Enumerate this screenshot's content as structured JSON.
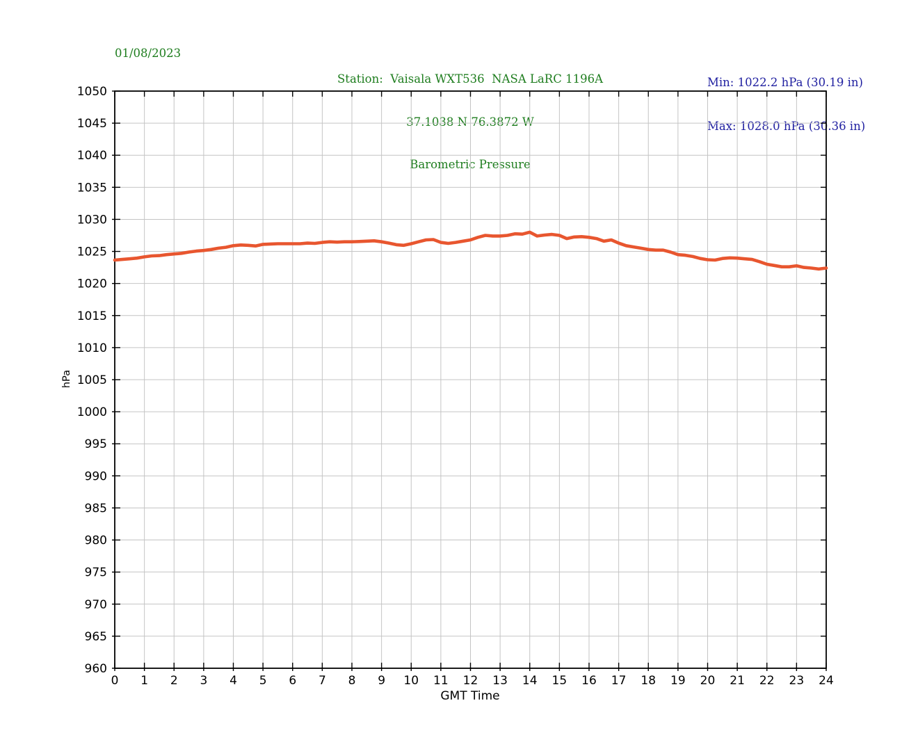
{
  "header": {
    "date": "01/08/2023",
    "title_line1": "Station:  Vaisala WXT536  NASA LaRC 1196A",
    "title_line2": "37.1038 N 76.3872 W",
    "title_line3": "Barometric Pressure",
    "min_label": "Min: 1022.2 hPa (30.19 in)",
    "max_label": "Max: 1028.0 hPa (30.36 in)"
  },
  "colors": {
    "title_green": "#1e7d1e",
    "minmax_blue": "#1f1fa0",
    "line_orange": "#e8562f",
    "grid_gray": "#c4c4c4",
    "border_black": "#000000"
  },
  "chart_data": {
    "type": "line",
    "title": "Barometric Pressure",
    "xlabel": "GMT Time",
    "ylabel": "hPa",
    "xlim": [
      0,
      24
    ],
    "ylim": [
      960,
      1050
    ],
    "x_ticks": [
      0,
      1,
      2,
      3,
      4,
      5,
      6,
      7,
      8,
      9,
      10,
      11,
      12,
      13,
      14,
      15,
      16,
      17,
      18,
      19,
      20,
      21,
      22,
      23,
      24
    ],
    "y_ticks": [
      960,
      965,
      970,
      975,
      980,
      985,
      990,
      995,
      1000,
      1005,
      1010,
      1015,
      1020,
      1025,
      1030,
      1035,
      1040,
      1045,
      1050
    ],
    "grid": true,
    "legend": "none",
    "stats": {
      "min_hpa": 1022.2,
      "min_in": 30.19,
      "max_hpa": 1028.0,
      "max_in": 30.36
    },
    "series": [
      {
        "name": "barometric_pressure_hPa",
        "x": [
          0,
          0.25,
          0.5,
          0.75,
          1,
          1.25,
          1.5,
          1.75,
          2,
          2.25,
          2.5,
          2.75,
          3,
          3.25,
          3.5,
          3.75,
          4,
          4.25,
          4.5,
          4.75,
          5,
          5.25,
          5.5,
          5.75,
          6,
          6.25,
          6.5,
          6.75,
          7,
          7.25,
          7.5,
          7.75,
          8,
          8.25,
          8.5,
          8.75,
          9,
          9.25,
          9.5,
          9.75,
          10,
          10.25,
          10.5,
          10.75,
          11,
          11.25,
          11.5,
          11.75,
          12,
          12.25,
          12.5,
          12.75,
          13,
          13.25,
          13.5,
          13.75,
          14,
          14.25,
          14.5,
          14.75,
          15,
          15.25,
          15.5,
          15.75,
          16,
          16.25,
          16.5,
          16.75,
          17,
          17.25,
          17.5,
          17.75,
          18,
          18.25,
          18.5,
          18.75,
          19,
          19.25,
          19.5,
          19.75,
          20,
          20.25,
          20.5,
          20.75,
          21,
          21.25,
          21.5,
          21.75,
          22,
          22.25,
          22.5,
          22.75,
          23,
          23.25,
          23.5,
          23.75,
          24
        ],
        "y": [
          1023.65,
          1023.75,
          1023.85,
          1023.95,
          1024.15,
          1024.3,
          1024.35,
          1024.5,
          1024.6,
          1024.7,
          1024.9,
          1025.05,
          1025.15,
          1025.3,
          1025.5,
          1025.65,
          1025.9,
          1026.0,
          1025.95,
          1025.85,
          1026.1,
          1026.15,
          1026.2,
          1026.2,
          1026.2,
          1026.2,
          1026.3,
          1026.25,
          1026.4,
          1026.5,
          1026.45,
          1026.5,
          1026.5,
          1026.55,
          1026.6,
          1026.65,
          1026.5,
          1026.3,
          1026.05,
          1025.95,
          1026.2,
          1026.5,
          1026.8,
          1026.85,
          1026.4,
          1026.25,
          1026.4,
          1026.6,
          1026.8,
          1027.2,
          1027.5,
          1027.4,
          1027.4,
          1027.5,
          1027.75,
          1027.7,
          1028.0,
          1027.4,
          1027.55,
          1027.65,
          1027.5,
          1027.0,
          1027.25,
          1027.3,
          1027.2,
          1027.0,
          1026.6,
          1026.8,
          1026.3,
          1025.9,
          1025.7,
          1025.5,
          1025.3,
          1025.2,
          1025.2,
          1024.9,
          1024.5,
          1024.4,
          1024.2,
          1023.9,
          1023.7,
          1023.65,
          1023.9,
          1024.0,
          1023.95,
          1023.85,
          1023.75,
          1023.4,
          1023.0,
          1022.8,
          1022.6,
          1022.6,
          1022.75,
          1022.5,
          1022.4,
          1022.25,
          1022.4
        ]
      }
    ]
  }
}
